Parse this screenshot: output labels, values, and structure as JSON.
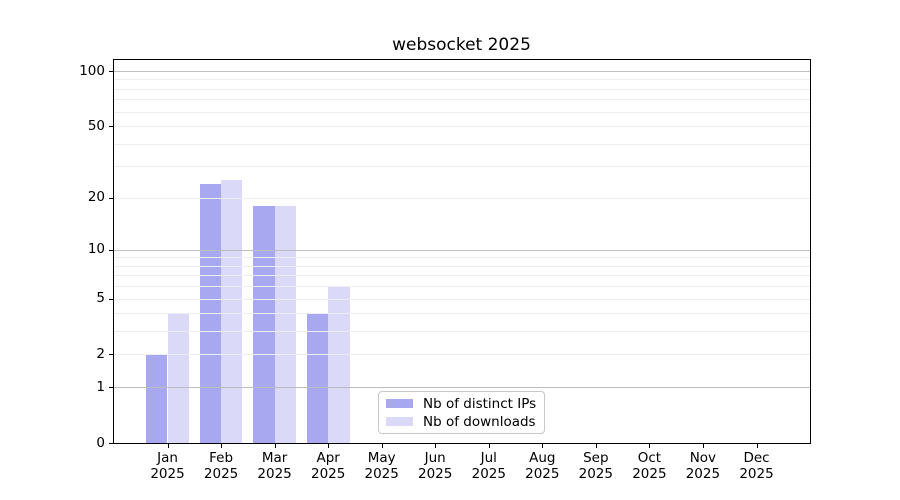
{
  "title": "websocket 2025",
  "chart_data": {
    "type": "bar",
    "title": "websocket 2025",
    "categories": [
      "Jan 2025",
      "Feb 2025",
      "Mar 2025",
      "Apr 2025",
      "May 2025",
      "Jun 2025",
      "Jul 2025",
      "Aug 2025",
      "Sep 2025",
      "Oct 2025",
      "Nov 2025",
      "Dec 2025"
    ],
    "series": [
      {
        "name": "Nb of distinct IPs",
        "color": "#a8a8f0",
        "values": [
          2,
          24,
          18,
          4,
          0,
          0,
          0,
          0,
          0,
          0,
          0,
          0
        ]
      },
      {
        "name": "Nb of downloads",
        "color": "#dadaf8",
        "values": [
          4,
          25,
          18,
          6,
          0,
          0,
          0,
          0,
          0,
          0,
          0,
          0
        ]
      }
    ],
    "xlabel": "",
    "ylabel": "",
    "yscale": "log1p",
    "ylim": [
      0,
      115
    ],
    "yticks": [
      0,
      1,
      2,
      5,
      10,
      20,
      50,
      100
    ],
    "minor_yticks": [
      3,
      4,
      6,
      7,
      8,
      9,
      30,
      40,
      60,
      70,
      80,
      90
    ],
    "major_gridlines": [
      1,
      10,
      100
    ],
    "grid": true,
    "legend_position": "lower center"
  },
  "colors": {
    "major_grid": "#bdbdbd",
    "minor_grid": "#ededed",
    "spine": "#000000",
    "legend_border": "#c8c8c8",
    "background": "#ffffff"
  }
}
